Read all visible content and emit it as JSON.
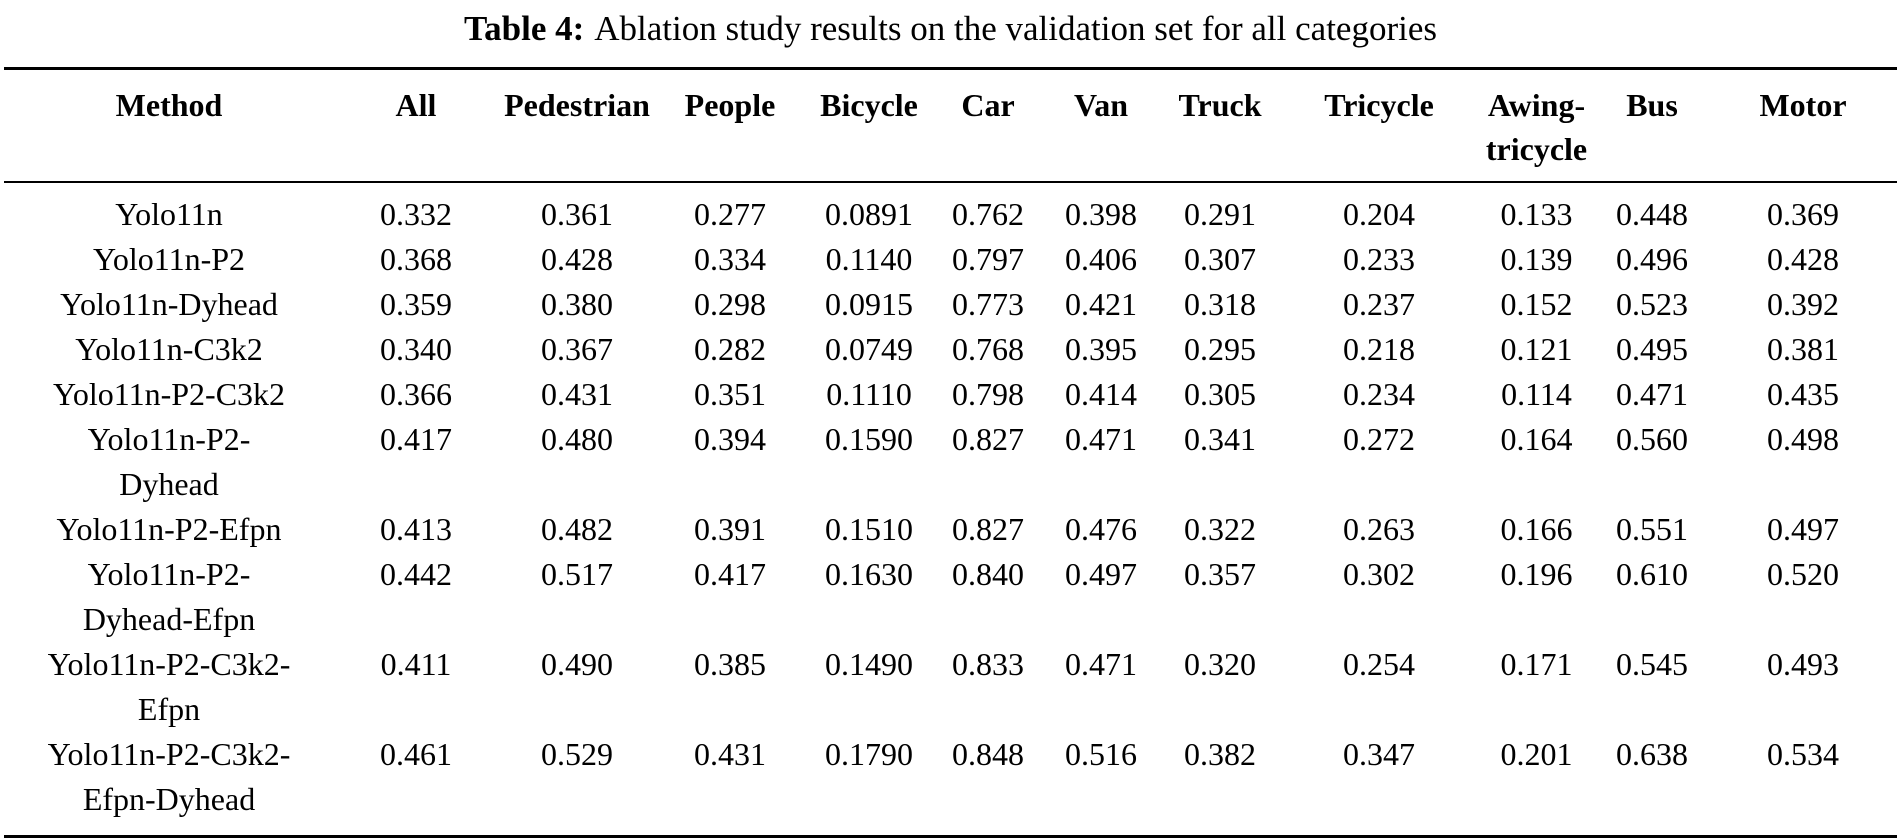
{
  "table": {
    "caption": {
      "label": "Table 4:",
      "text": "Ablation study results on the validation set for all categories"
    },
    "columns": [
      {
        "key": "method",
        "label_lines": [
          "Method"
        ]
      },
      {
        "key": "all",
        "label_lines": [
          "All"
        ]
      },
      {
        "key": "pedestrian",
        "label_lines": [
          "Pedestrian"
        ]
      },
      {
        "key": "people",
        "label_lines": [
          "People"
        ]
      },
      {
        "key": "bicycle",
        "label_lines": [
          "Bicycle"
        ]
      },
      {
        "key": "car",
        "label_lines": [
          "Car"
        ]
      },
      {
        "key": "van",
        "label_lines": [
          "Van"
        ]
      },
      {
        "key": "truck",
        "label_lines": [
          "Truck"
        ]
      },
      {
        "key": "tricycle",
        "label_lines": [
          "Tricycle"
        ]
      },
      {
        "key": "awing-tricycle",
        "label_lines": [
          "Awing-",
          "tricycle"
        ]
      },
      {
        "key": "bus",
        "label_lines": [
          "Bus"
        ]
      },
      {
        "key": "motor",
        "label_lines": [
          "Motor"
        ]
      }
    ],
    "rows": [
      {
        "method_lines": [
          "Yolo11n"
        ],
        "values": [
          "0.332",
          "0.361",
          "0.277",
          "0.0891",
          "0.762",
          "0.398",
          "0.291",
          "0.204",
          "0.133",
          "0.448",
          "0.369"
        ]
      },
      {
        "method_lines": [
          "Yolo11n-P2"
        ],
        "values": [
          "0.368",
          "0.428",
          "0.334",
          "0.1140",
          "0.797",
          "0.406",
          "0.307",
          "0.233",
          "0.139",
          "0.496",
          "0.428"
        ]
      },
      {
        "method_lines": [
          "Yolo11n-Dyhead"
        ],
        "values": [
          "0.359",
          "0.380",
          "0.298",
          "0.0915",
          "0.773",
          "0.421",
          "0.318",
          "0.237",
          "0.152",
          "0.523",
          "0.392"
        ]
      },
      {
        "method_lines": [
          "Yolo11n-C3k2"
        ],
        "values": [
          "0.340",
          "0.367",
          "0.282",
          "0.0749",
          "0.768",
          "0.395",
          "0.295",
          "0.218",
          "0.121",
          "0.495",
          "0.381"
        ]
      },
      {
        "method_lines": [
          "Yolo11n-P2-C3k2"
        ],
        "values": [
          "0.366",
          "0.431",
          "0.351",
          "0.1110",
          "0.798",
          "0.414",
          "0.305",
          "0.234",
          "0.114",
          "0.471",
          "0.435"
        ]
      },
      {
        "method_lines": [
          "Yolo11n-P2-",
          "Dyhead"
        ],
        "values": [
          "0.417",
          "0.480",
          "0.394",
          "0.1590",
          "0.827",
          "0.471",
          "0.341",
          "0.272",
          "0.164",
          "0.560",
          "0.498"
        ]
      },
      {
        "method_lines": [
          "Yolo11n-P2-Efpn"
        ],
        "values": [
          "0.413",
          "0.482",
          "0.391",
          "0.1510",
          "0.827",
          "0.476",
          "0.322",
          "0.263",
          "0.166",
          "0.551",
          "0.497"
        ]
      },
      {
        "method_lines": [
          "Yolo11n-P2-",
          "Dyhead-Efpn"
        ],
        "values": [
          "0.442",
          "0.517",
          "0.417",
          "0.1630",
          "0.840",
          "0.497",
          "0.357",
          "0.302",
          "0.196",
          "0.610",
          "0.520"
        ]
      },
      {
        "method_lines": [
          "Yolo11n-P2-C3k2-",
          "Efpn"
        ],
        "values": [
          "0.411",
          "0.490",
          "0.385",
          "0.1490",
          "0.833",
          "0.471",
          "0.320",
          "0.254",
          "0.171",
          "0.545",
          "0.493"
        ]
      },
      {
        "method_lines": [
          "Yolo11n-P2-C3k2-",
          "Efpn-Dyhead"
        ],
        "values": [
          "0.461",
          "0.529",
          "0.431",
          "0.1790",
          "0.848",
          "0.516",
          "0.382",
          "0.347",
          "0.201",
          "0.638",
          "0.534"
        ]
      }
    ]
  }
}
